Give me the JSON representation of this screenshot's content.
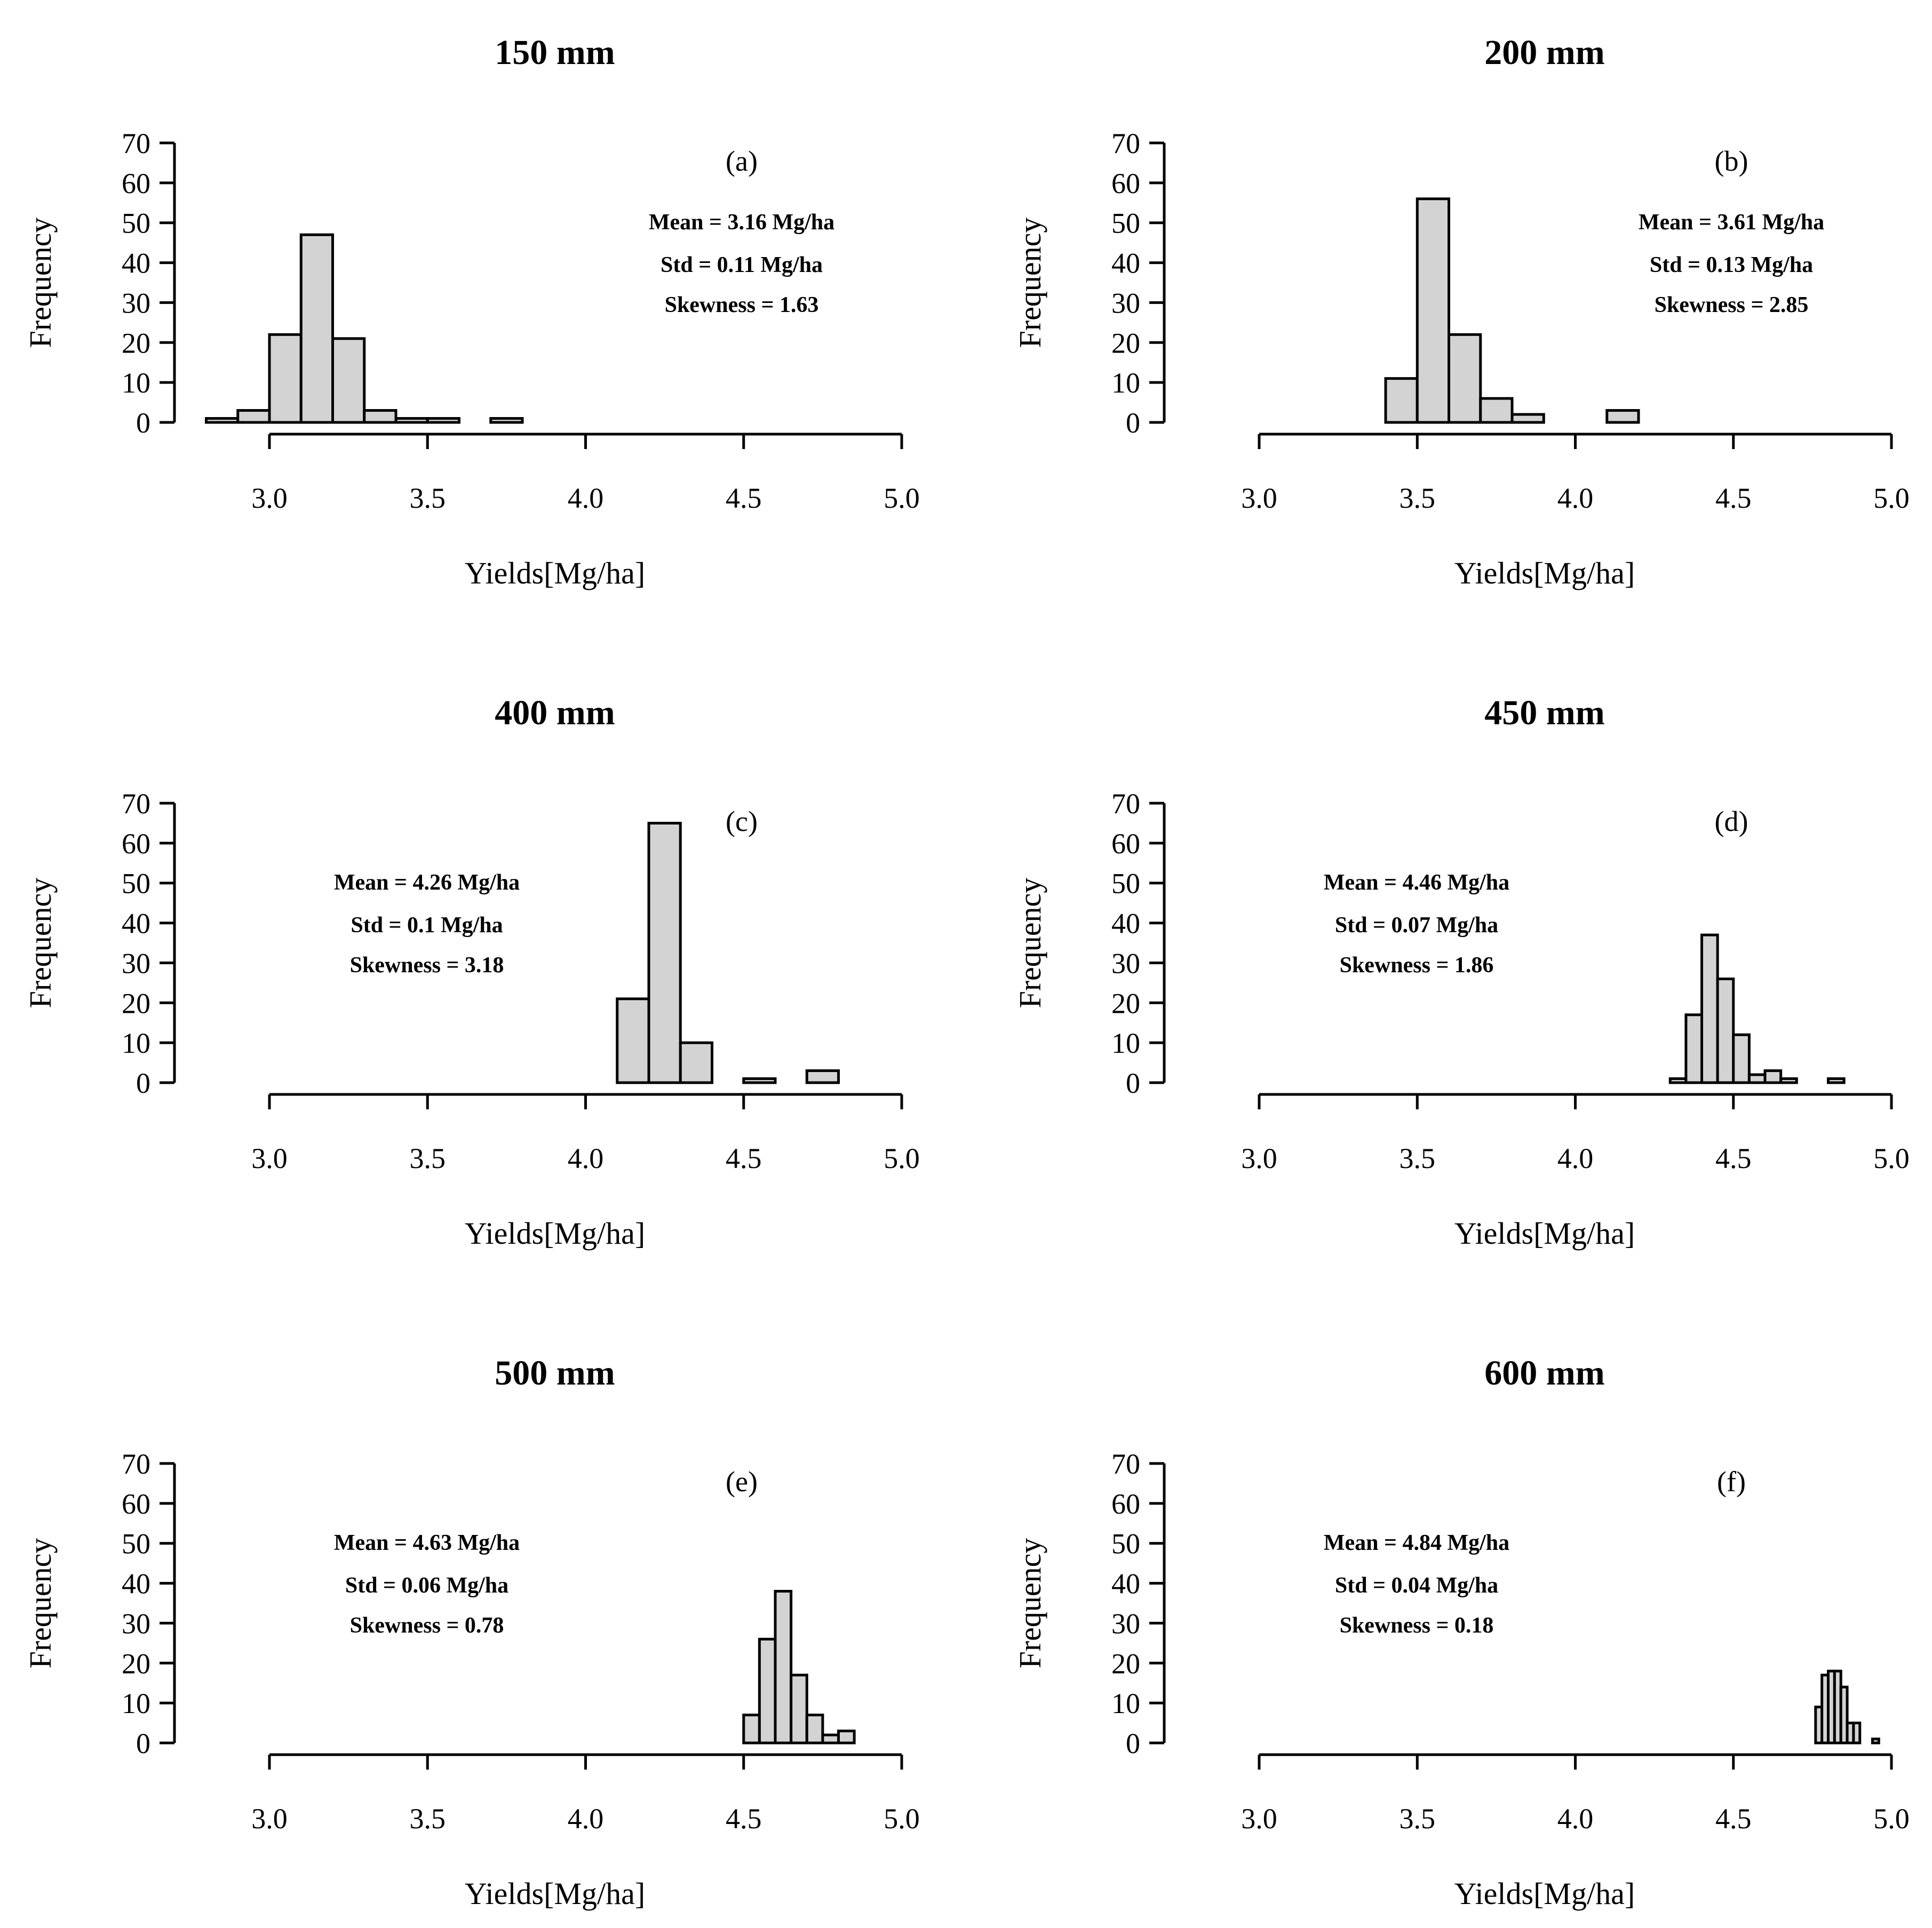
{
  "chart_data": [
    {
      "type": "bar",
      "title": "150 mm",
      "panel_label": "(a)",
      "xlabel": "Yields[Mg/ha]",
      "ylabel": "Frequency",
      "xlim": [
        3.0,
        5.0
      ],
      "ylim": [
        0,
        70
      ],
      "xticks": [
        "3.0",
        "3.5",
        "4.0",
        "4.5",
        "5.0"
      ],
      "yticks": [
        "0",
        "10",
        "20",
        "30",
        "40",
        "50",
        "60",
        "70"
      ],
      "bin_width": 0.1,
      "bins_start": [
        2.8,
        2.9,
        3.0,
        3.1,
        3.2,
        3.3,
        3.4,
        3.5,
        3.6,
        3.7
      ],
      "values": [
        1,
        3,
        22,
        47,
        21,
        3,
        1,
        1,
        0,
        1
      ],
      "stats": [
        "Mean = 3.16 Mg/ha",
        "Std = 0.11 Mg/ha",
        "Skewness = 1.63"
      ],
      "stats_position": "right"
    },
    {
      "type": "bar",
      "title": "200 mm",
      "panel_label": "(b)",
      "xlabel": "Yields[Mg/ha]",
      "ylabel": "Frequency",
      "xlim": [
        3.0,
        5.0
      ],
      "ylim": [
        0,
        70
      ],
      "xticks": [
        "3.0",
        "3.5",
        "4.0",
        "4.5",
        "5.0"
      ],
      "yticks": [
        "0",
        "10",
        "20",
        "30",
        "40",
        "50",
        "60",
        "70"
      ],
      "bin_width": 0.1,
      "bins_start": [
        3.4,
        3.5,
        3.6,
        3.7,
        3.8,
        3.9,
        4.0,
        4.1
      ],
      "values": [
        11,
        56,
        22,
        6,
        2,
        0,
        0,
        3
      ],
      "stats": [
        "Mean = 3.61 Mg/ha",
        "Std = 0.13 Mg/ha",
        "Skewness = 2.85"
      ],
      "stats_position": "right"
    },
    {
      "type": "bar",
      "title": "400 mm",
      "panel_label": "(c)",
      "xlabel": "Yields[Mg/ha]",
      "ylabel": "Frequency",
      "xlim": [
        3.0,
        5.0
      ],
      "ylim": [
        0,
        70
      ],
      "xticks": [
        "3.0",
        "3.5",
        "4.0",
        "4.5",
        "5.0"
      ],
      "yticks": [
        "0",
        "10",
        "20",
        "30",
        "40",
        "50",
        "60",
        "70"
      ],
      "bin_width": 0.1,
      "bins_start": [
        4.1,
        4.2,
        4.3,
        4.4,
        4.5,
        4.6,
        4.7
      ],
      "values": [
        21,
        65,
        10,
        0,
        1,
        0,
        3
      ],
      "stats": [
        "Mean = 4.26 Mg/ha",
        "Std = 0.1 Mg/ha",
        "Skewness = 3.18"
      ],
      "stats_position": "left"
    },
    {
      "type": "bar",
      "title": "450 mm",
      "panel_label": "(d)",
      "xlabel": "Yields[Mg/ha]",
      "ylabel": "Frequency",
      "xlim": [
        3.0,
        5.0
      ],
      "ylim": [
        0,
        70
      ],
      "xticks": [
        "3.0",
        "3.5",
        "4.0",
        "4.5",
        "5.0"
      ],
      "yticks": [
        "0",
        "10",
        "20",
        "30",
        "40",
        "50",
        "60",
        "70"
      ],
      "bin_width": 0.05,
      "bins_start": [
        4.3,
        4.35,
        4.4,
        4.45,
        4.5,
        4.55,
        4.6,
        4.65,
        4.7,
        4.75,
        4.8
      ],
      "values": [
        1,
        17,
        37,
        26,
        12,
        2,
        3,
        1,
        0,
        0,
        1
      ],
      "stats": [
        "Mean = 4.46 Mg/ha",
        "Std = 0.07 Mg/ha",
        "Skewness = 1.86"
      ],
      "stats_position": "left"
    },
    {
      "type": "bar",
      "title": "500 mm",
      "panel_label": "(e)",
      "xlabel": "Yields[Mg/ha]",
      "ylabel": "Frequency",
      "xlim": [
        3.0,
        5.0
      ],
      "ylim": [
        0,
        70
      ],
      "xticks": [
        "3.0",
        "3.5",
        "4.0",
        "4.5",
        "5.0"
      ],
      "yticks": [
        "0",
        "10",
        "20",
        "30",
        "40",
        "50",
        "60",
        "70"
      ],
      "bin_width": 0.05,
      "bins_start": [
        4.5,
        4.55,
        4.6,
        4.65,
        4.7,
        4.75,
        4.8
      ],
      "values": [
        7,
        26,
        38,
        17,
        7,
        2,
        3
      ],
      "stats": [
        "Mean = 4.63 Mg/ha",
        "Std = 0.06 Mg/ha",
        "Skewness = 0.78"
      ],
      "stats_position": "left"
    },
    {
      "type": "bar",
      "title": "600 mm",
      "panel_label": "(f)",
      "xlabel": "Yields[Mg/ha]",
      "ylabel": "Frequency",
      "xlim": [
        3.0,
        5.0
      ],
      "ylim": [
        0,
        70
      ],
      "xticks": [
        "3.0",
        "3.5",
        "4.0",
        "4.5",
        "5.0"
      ],
      "yticks": [
        "0",
        "10",
        "20",
        "30",
        "40",
        "50",
        "60",
        "70"
      ],
      "bin_width": 0.02,
      "bins_start": [
        4.76,
        4.78,
        4.8,
        4.82,
        4.84,
        4.86,
        4.88,
        4.9,
        4.92,
        4.94
      ],
      "values": [
        9,
        17,
        18,
        18,
        14,
        5,
        5,
        0,
        0,
        1
      ],
      "stats": [
        "Mean = 4.84 Mg/ha",
        "Std = 0.04 Mg/ha",
        "Skewness = 0.18"
      ],
      "stats_position": "left"
    }
  ]
}
